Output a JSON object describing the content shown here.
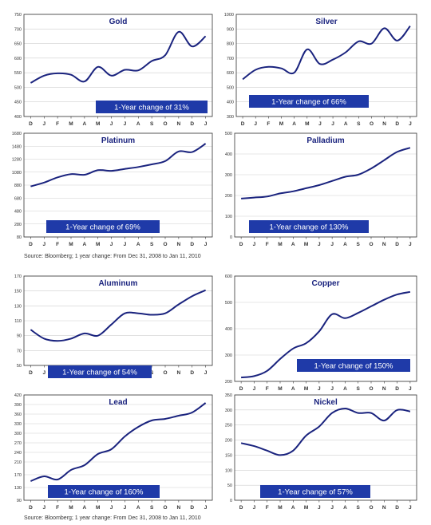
{
  "colors": {
    "line": "#1a237e",
    "badge_bg": "#1f3aa8",
    "badge_text": "#ffffff",
    "title": "#1a237e",
    "grid": "#cfcfcf",
    "axis": "#333333"
  },
  "months": [
    "D",
    "J",
    "F",
    "M",
    "A",
    "M",
    "J",
    "J",
    "A",
    "S",
    "O",
    "N",
    "D",
    "J"
  ],
  "sources": [
    "Source: Bloomberg; 1 year change: From Dec 31, 2008 to Jan 11, 2010",
    "Source: Bloomberg; 1 year change: From Dec 31, 2008 to Jan 11, 2010"
  ],
  "chart_data": [
    {
      "type": "line",
      "title": "Gold",
      "ylim": [
        400,
        750
      ],
      "yticks": [
        400,
        450,
        500,
        550,
        600,
        650,
        700,
        750
      ],
      "badge": "1-Year change of 31%",
      "values": [
        515,
        540,
        548,
        543,
        520,
        570,
        540,
        560,
        558,
        590,
        610,
        690,
        640,
        675
      ]
    },
    {
      "type": "line",
      "title": "Silver",
      "ylim": [
        300,
        1000
      ],
      "yticks": [
        300,
        400,
        500,
        600,
        700,
        800,
        900,
        1000
      ],
      "badge": "1-Year change of 66%",
      "values": [
        555,
        620,
        640,
        630,
        600,
        760,
        660,
        690,
        740,
        815,
        800,
        905,
        820,
        920
      ]
    },
    {
      "type": "line",
      "title": "Platinum",
      "ylim": [
        80,
        1680
      ],
      "yticks": [
        80,
        280,
        480,
        680,
        880,
        1080,
        1280,
        1480,
        1680
      ],
      "badge": "1-Year change of 69%",
      "values": [
        860,
        920,
        1000,
        1050,
        1040,
        1110,
        1100,
        1130,
        1160,
        1200,
        1250,
        1400,
        1390,
        1520
      ]
    },
    {
      "type": "line",
      "title": "Palladium",
      "ylim": [
        0,
        500
      ],
      "yticks": [
        0,
        100,
        200,
        300,
        400,
        500
      ],
      "badge": "1-Year change of 130%",
      "values": [
        185,
        190,
        195,
        210,
        220,
        235,
        250,
        270,
        290,
        300,
        330,
        370,
        410,
        430
      ]
    },
    {
      "type": "line",
      "title": "Aluminum",
      "ylim": [
        50,
        170
      ],
      "yticks": [
        50,
        70,
        90,
        110,
        130,
        150,
        170
      ],
      "badge": "1-Year change of 54%",
      "values": [
        98,
        86,
        83,
        86,
        93,
        90,
        105,
        120,
        120,
        118,
        120,
        132,
        143,
        151
      ]
    },
    {
      "type": "line",
      "title": "Copper",
      "ylim": [
        200,
        600
      ],
      "yticks": [
        200,
        300,
        400,
        500,
        600
      ],
      "badge": "1-Year change of 150%",
      "values": [
        215,
        220,
        240,
        285,
        325,
        345,
        390,
        455,
        440,
        460,
        485,
        510,
        530,
        540
      ]
    },
    {
      "type": "line",
      "title": "Lead",
      "ylim": [
        90,
        420
      ],
      "yticks": [
        90,
        130,
        170,
        210,
        240,
        270,
        300,
        330,
        360,
        390,
        420
      ],
      "badge": "1-Year change of 160%",
      "values": [
        150,
        165,
        155,
        185,
        200,
        235,
        250,
        290,
        320,
        340,
        345,
        355,
        365,
        395
      ]
    },
    {
      "type": "line",
      "title": "Nickel",
      "ylim": [
        0,
        350
      ],
      "yticks": [
        0,
        50,
        100,
        150,
        200,
        250,
        300,
        350
      ],
      "badge": "1-Year change of 57%",
      "values": [
        190,
        180,
        165,
        150,
        165,
        215,
        245,
        290,
        305,
        290,
        290,
        265,
        300,
        295
      ]
    }
  ]
}
